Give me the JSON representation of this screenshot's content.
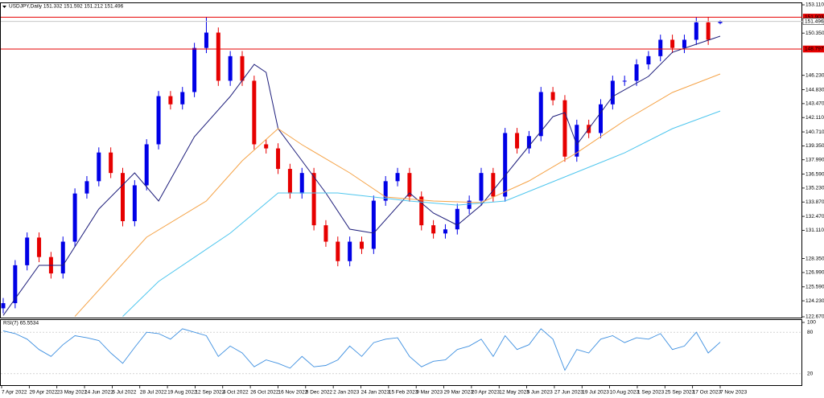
{
  "chart_data": [
    {
      "type": "candlestick",
      "title": "USDJPY,Daily  151.332 151.592 151.212 151.496",
      "up_color": "#0000e6",
      "down_color": "#e60000",
      "open": [
        123.5,
        124.0,
        127.7,
        130.4,
        128.5,
        126.9,
        130.0,
        134.7,
        135.9,
        138.7,
        136.7,
        132.0,
        135.5,
        139.5,
        144.2,
        143.4,
        144.6,
        148.9,
        150.4,
        145.7,
        148.1,
        145.7,
        139.5,
        139.1,
        137.1,
        134.7,
        136.7,
        131.6,
        130.0,
        128.1,
        130.0,
        129.3,
        134.0,
        135.9,
        136.7,
        134.4,
        131.6,
        130.8,
        131.2,
        133.2,
        134.0,
        136.7,
        134.4,
        140.6,
        139.1,
        140.3,
        144.6,
        143.8,
        138.3,
        141.4,
        140.6,
        143.4,
        145.7,
        145.7,
        147.3,
        148.1,
        149.7,
        148.9,
        149.7,
        151.4,
        151.332
      ],
      "high": [
        124.5,
        128.2,
        130.9,
        130.9,
        129.0,
        130.5,
        135.2,
        136.4,
        139.2,
        139.2,
        137.2,
        136.0,
        140.0,
        144.7,
        144.7,
        145.1,
        149.4,
        151.9,
        150.9,
        148.6,
        148.6,
        146.2,
        140.0,
        139.6,
        137.6,
        137.2,
        137.2,
        132.1,
        130.5,
        130.5,
        130.5,
        134.5,
        136.4,
        137.2,
        137.2,
        134.9,
        132.1,
        131.7,
        133.7,
        134.5,
        137.2,
        137.2,
        141.1,
        141.1,
        140.8,
        145.1,
        145.1,
        144.3,
        141.9,
        141.9,
        143.9,
        146.2,
        146.2,
        147.8,
        148.6,
        150.2,
        150.2,
        150.2,
        151.9,
        151.9,
        151.592
      ],
      "low": [
        123.0,
        123.5,
        127.2,
        128.0,
        126.4,
        126.4,
        129.5,
        134.2,
        135.4,
        136.2,
        131.5,
        131.5,
        135.0,
        139.0,
        142.9,
        142.9,
        144.1,
        148.4,
        145.2,
        145.2,
        145.2,
        139.0,
        138.6,
        136.6,
        134.2,
        134.2,
        131.1,
        129.5,
        127.6,
        127.6,
        128.8,
        128.8,
        133.5,
        135.4,
        133.9,
        131.1,
        130.3,
        130.3,
        130.7,
        132.7,
        133.5,
        133.9,
        133.9,
        138.6,
        138.6,
        139.8,
        143.3,
        137.8,
        137.8,
        140.1,
        140.1,
        142.9,
        145.2,
        145.2,
        146.8,
        147.6,
        148.4,
        148.4,
        149.2,
        149.2,
        151.212
      ],
      "close": [
        124.0,
        127.7,
        130.4,
        128.5,
        126.9,
        130.0,
        134.7,
        135.9,
        138.7,
        136.7,
        132.0,
        135.5,
        139.5,
        144.2,
        143.4,
        144.6,
        148.9,
        150.4,
        145.7,
        148.1,
        145.7,
        139.5,
        139.1,
        137.1,
        134.7,
        136.7,
        131.6,
        130.0,
        128.1,
        130.0,
        129.3,
        134.0,
        135.9,
        136.7,
        134.4,
        131.6,
        130.8,
        131.2,
        133.2,
        134.0,
        136.7,
        134.4,
        140.6,
        139.1,
        140.3,
        144.6,
        143.8,
        138.3,
        141.4,
        140.6,
        143.4,
        145.7,
        145.7,
        147.3,
        148.1,
        149.7,
        148.9,
        149.7,
        151.4,
        149.7,
        151.496
      ],
      "series": [
        {
          "color": "#1c1c7a",
          "x": [
            0,
            3,
            5,
            8,
            11,
            13,
            16,
            19,
            21,
            22,
            23,
            25,
            27,
            29,
            31,
            34,
            36,
            38,
            40,
            43,
            46,
            47,
            48,
            51,
            54,
            56,
            59,
            60
          ],
          "values": [
            122.8,
            127.69,
            127.69,
            133.18,
            136.71,
            133.97,
            140.24,
            144.17,
            147.3,
            146.52,
            141.03,
            137.89,
            134.75,
            131.22,
            130.83,
            134.75,
            132.79,
            131.61,
            133.57,
            137.89,
            142.2,
            142.6,
            139.46,
            144.17,
            146.13,
            148.48,
            149.66,
            150.05
          ]
        },
        {
          "color": "#f5a347",
          "x": [
            6,
            12,
            17,
            20,
            23,
            25,
            29,
            32,
            36,
            40,
            44,
            48,
            52,
            56,
            60
          ],
          "values": [
            122.7,
            130.44,
            133.97,
            137.89,
            141.03,
            139.46,
            136.71,
            134.36,
            133.97,
            133.81,
            135.93,
            138.67,
            141.81,
            144.56,
            146.36
          ]
        },
        {
          "color": "#4ec6ee",
          "x": [
            10,
            13,
            19,
            23,
            28,
            34,
            38,
            42,
            47,
            52,
            56,
            60
          ],
          "values": [
            122.7,
            126.12,
            130.83,
            134.75,
            134.75,
            133.97,
            133.57,
            133.97,
            136.32,
            138.67,
            141.03,
            142.75
          ]
        }
      ],
      "levels": [
        {
          "value": 151.903,
          "color": "#e60000"
        },
        {
          "value": 151.496,
          "color": "#c8c8c8"
        },
        {
          "value": 148.797,
          "color": "#e60000"
        }
      ],
      "ylim": [
        122.67,
        153.11
      ],
      "yticks": [
        {
          "value": 153.11,
          "label": "153.110"
        },
        {
          "value": 150.35,
          "label": "150.350"
        },
        {
          "value": 146.23,
          "label": "146.230"
        },
        {
          "value": 144.83,
          "label": "144.830"
        },
        {
          "value": 143.47,
          "label": "143.470"
        },
        {
          "value": 142.11,
          "label": "142.110"
        },
        {
          "value": 140.71,
          "label": "140.710"
        },
        {
          "value": 139.35,
          "label": "139.350"
        },
        {
          "value": 137.99,
          "label": "137.990"
        },
        {
          "value": 136.59,
          "label": "136.590"
        },
        {
          "value": 135.23,
          "label": "135.230"
        },
        {
          "value": 133.87,
          "label": "133.870"
        },
        {
          "value": 132.47,
          "label": "132.470"
        },
        {
          "value": 131.11,
          "label": "131.110"
        },
        {
          "value": 128.35,
          "label": "128.350"
        },
        {
          "value": 126.99,
          "label": "126.990"
        },
        {
          "value": 125.59,
          "label": "125.590"
        },
        {
          "value": 124.23,
          "label": "124.230"
        },
        {
          "value": 122.67,
          "label": "122.670"
        }
      ]
    },
    {
      "type": "line",
      "title": "RSI(7) 65.5534",
      "color": "#3d8fe0",
      "values": [
        82,
        78,
        70,
        55,
        45,
        62,
        75,
        72,
        68,
        50,
        35,
        58,
        80,
        78,
        70,
        85,
        80,
        75,
        45,
        60,
        50,
        30,
        40,
        35,
        28,
        45,
        30,
        32,
        40,
        60,
        45,
        65,
        70,
        72,
        45,
        30,
        38,
        40,
        55,
        60,
        70,
        45,
        75,
        55,
        62,
        85,
        70,
        25,
        55,
        50,
        70,
        75,
        65,
        72,
        70,
        78,
        55,
        60,
        80,
        50,
        65.5534
      ],
      "ylim": [
        0,
        100
      ],
      "yticks": [
        20,
        80,
        100
      ],
      "grid": true,
      "xticks": [
        "7 Apr 2022",
        "29 Apr 2022",
        "23 May 2022",
        "14 Jun 2022",
        "6 Jul 2022",
        "28 Jul 2022",
        "19 Aug 2022",
        "12 Sep 2022",
        "4 Oct 2022",
        "26 Oct 2022",
        "16 Nov 2022",
        "8 Dec 2022",
        "2 Jan 2023",
        "24 Jan 2023",
        "15 Feb 2023",
        "9 Mar 2023",
        "29 Mar 2023",
        "20 Apr 2023",
        "12 May 2023",
        "5 Jun 2023",
        "27 Jun 2023",
        "19 Jul 2023",
        "10 Aug 2023",
        "1 Sep 2023",
        "25 Sep 2023",
        "17 Oct 2023",
        "7 Nov 2023"
      ]
    }
  ]
}
